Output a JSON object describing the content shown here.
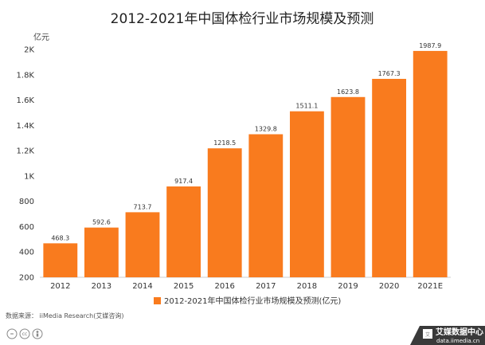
{
  "chart_data": {
    "type": "bar",
    "title": "2012-2021年中国体检行业市场规模及预测",
    "unit": "亿元",
    "categories": [
      "2012",
      "2013",
      "2014",
      "2015",
      "2016",
      "2017",
      "2018",
      "2019",
      "2020",
      "2021E"
    ],
    "series": [
      {
        "name": "2012-2021年中国体检行业市场规模及预测(亿元)",
        "values": [
          468.3,
          592.6,
          713.7,
          917.4,
          1218.5,
          1329.8,
          1511.1,
          1623.8,
          1767.3,
          1987.9
        ],
        "labels": [
          "468.3",
          "592.6",
          "713.7",
          "917.4",
          "1218.5",
          "1329.8",
          "1511.1",
          "1623.8",
          "1767.3",
          "1987.9"
        ],
        "color": "#F97B1E"
      }
    ],
    "ylim": [
      200,
      2000
    ],
    "yticks": [
      200,
      400,
      600,
      800,
      1000,
      1200,
      1400,
      1600,
      1800,
      2000
    ],
    "ytick_labels": [
      "200",
      "400",
      "600",
      "800",
      "1K",
      "1.2K",
      "1.4K",
      "1.6K",
      "1.8K",
      "2K"
    ],
    "grid": false,
    "legend_position": "bottom"
  },
  "footer": {
    "source": "数据来源：  iiMedia Research(艾媒咨询)",
    "license_icons": [
      "=",
      "cc",
      "person"
    ],
    "brand_main": "艾媒数据中心",
    "brand_sub": "data.iimedia.cn",
    "brand_color": "#3A3A3A"
  }
}
